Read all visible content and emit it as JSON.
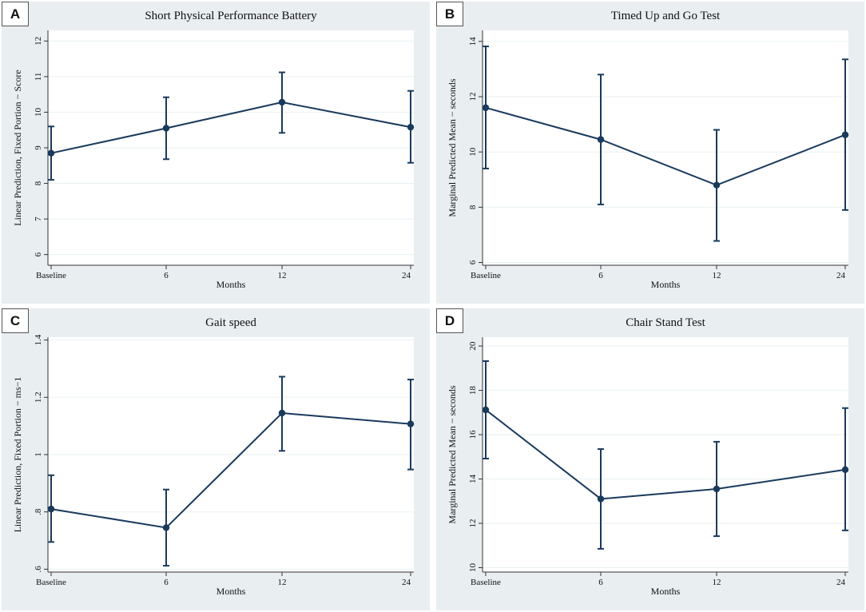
{
  "colors": {
    "background": "#e9eef1",
    "plot_area": "#ffffff",
    "series": "#1a3a5c",
    "grid": "#eaf2f3"
  },
  "chart_data": [
    {
      "panel": "A",
      "type": "line",
      "title": "Short Physical Performance Battery",
      "xlabel": "Months",
      "ylabel": "Linear Prediction, Fixed Portion − Score",
      "categories": [
        "Baseline",
        "6",
        "12",
        "24"
      ],
      "values": [
        8.85,
        9.55,
        10.28,
        9.58
      ],
      "ci_low": [
        8.1,
        8.68,
        9.42,
        8.58
      ],
      "ci_high": [
        9.6,
        10.42,
        11.12,
        10.6
      ],
      "ylim": [
        5.7,
        12.3
      ],
      "yticks": [
        6,
        7,
        8,
        9,
        10,
        11,
        12
      ],
      "ytick_labels": [
        "6",
        "7",
        "8",
        "9",
        "10",
        "11",
        "12"
      ]
    },
    {
      "panel": "B",
      "type": "line",
      "title": "Timed Up and Go Test",
      "xlabel": "Months",
      "ylabel": "Marginal Predicted Mean − seconds",
      "categories": [
        "Baseline",
        "6",
        "12",
        "24"
      ],
      "values": [
        11.6,
        10.45,
        8.8,
        10.62
      ],
      "ci_low": [
        9.4,
        8.1,
        6.78,
        7.9
      ],
      "ci_high": [
        13.82,
        12.8,
        10.8,
        13.35
      ],
      "ylim": [
        5.9,
        14.4
      ],
      "yticks": [
        6,
        8,
        10,
        12,
        14
      ],
      "ytick_labels": [
        "6",
        "8",
        "10",
        "12",
        "14"
      ]
    },
    {
      "panel": "C",
      "type": "line",
      "title": "Gait speed",
      "xlabel": "Months",
      "ylabel": "Linear Prediction, Fixed Portion − ms−1",
      "categories": [
        "Baseline",
        "6",
        "12",
        "24"
      ],
      "values": [
        0.81,
        0.745,
        1.145,
        1.107
      ],
      "ci_low": [
        0.695,
        0.612,
        1.013,
        0.948
      ],
      "ci_high": [
        0.928,
        0.878,
        1.272,
        1.262
      ],
      "ylim": [
        0.59,
        1.41
      ],
      "yticks": [
        0.6,
        0.8,
        1.0,
        1.2,
        1.4
      ],
      "ytick_labels": [
        ".6",
        ".8",
        "1",
        "1.2",
        "1.4"
      ]
    },
    {
      "panel": "D",
      "type": "line",
      "title": "Chair Stand Test",
      "xlabel": "Months",
      "ylabel": "Marginal Predicted Mean − seconds",
      "categories": [
        "Baseline",
        "6",
        "12",
        "24"
      ],
      "values": [
        17.12,
        13.1,
        13.55,
        14.42
      ],
      "ci_low": [
        14.92,
        10.85,
        11.42,
        11.68
      ],
      "ci_high": [
        19.32,
        15.35,
        15.68,
        17.2
      ],
      "ylim": [
        9.8,
        20.4
      ],
      "yticks": [
        10,
        12,
        14,
        16,
        18,
        20
      ],
      "ytick_labels": [
        "10",
        "12",
        "14",
        "16",
        "18",
        "20"
      ]
    }
  ]
}
